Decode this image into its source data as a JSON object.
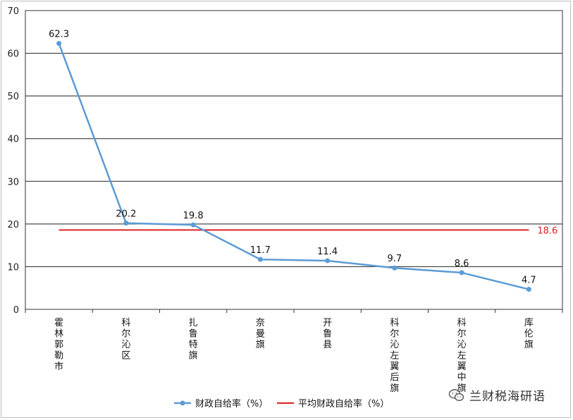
{
  "chart_data": {
    "type": "line",
    "categories": [
      "霍林郭勒市",
      "科尔沁区",
      "扎鲁特旗",
      "奈曼旗",
      "开鲁县",
      "科尔沁左翼后旗",
      "科尔沁左翼中旗",
      "库伦旗"
    ],
    "series": [
      {
        "name": "财政自给率（%）",
        "values": [
          62.3,
          20.2,
          19.8,
          11.7,
          11.4,
          9.7,
          8.6,
          4.7
        ],
        "color": "#5b9bd5"
      },
      {
        "name": "平均财政自给率（%）",
        "values": [
          18.6,
          18.6,
          18.6,
          18.6,
          18.6,
          18.6,
          18.6,
          18.6
        ],
        "color": "#e02020"
      }
    ],
    "data_labels": [
      "62.3",
      "20.2",
      "19.8",
      "11.7",
      "11.4",
      "9.7",
      "8.6",
      "4.7"
    ],
    "average_label": "18.6",
    "yticks": [
      "0",
      "10",
      "20",
      "30",
      "40",
      "50",
      "60",
      "70"
    ],
    "ylim": [
      0,
      70
    ],
    "grid": true,
    "legend_position": "bottom"
  },
  "watermark": {
    "text": "兰财税海研语",
    "icon": "wechat-icon"
  }
}
